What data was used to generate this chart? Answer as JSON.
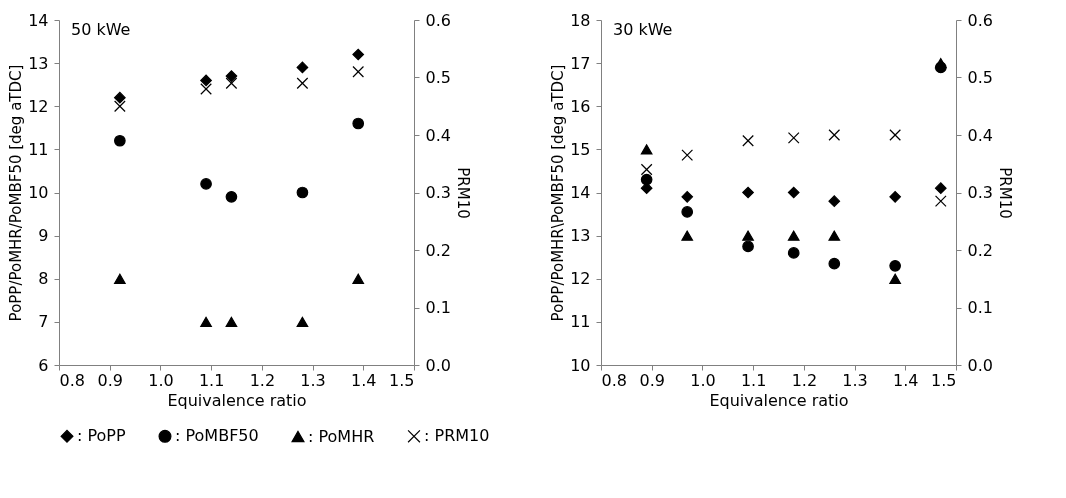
{
  "chart_data": [
    {
      "type": "scatter",
      "annotations": [
        "50 kWe"
      ],
      "xlabel": "Equivalence ratio",
      "ylabel": "PoPP/PoMHR/PoMBF50 [deg aTDC]",
      "y2label": "PRM10",
      "x": [
        0.92,
        1.09,
        1.14,
        1.28,
        1.39
      ],
      "xlim": [
        0.8,
        1.5
      ],
      "xticks": [
        0.8,
        0.9,
        {
          "value": 1.0,
          "label": "1.0"
        },
        1.1,
        1.2,
        1.3,
        1.4,
        1.5
      ],
      "ylim": [
        6,
        14
      ],
      "yticks": [
        6,
        7,
        8,
        9,
        10,
        11,
        12,
        13,
        14
      ],
      "y2lim": [
        0,
        0.6
      ],
      "y2ticks": [
        {
          "value": 0,
          "label": "0.0"
        },
        0.1,
        0.2,
        0.3,
        0.4,
        0.5,
        0.6
      ],
      "grid": false,
      "legend": "bottom",
      "series": [
        {
          "name": ": PoPP",
          "color": "#000000",
          "marker": "diamond",
          "values": [
            12.2,
            12.6,
            12.7,
            12.9,
            13.2
          ]
        },
        {
          "name": ": PoMBF50",
          "color": "#000000",
          "marker": "circle",
          "values": [
            11.2,
            10.2,
            9.9,
            10.0,
            11.6
          ]
        },
        {
          "name": ": PoMHR",
          "color": "#000000",
          "marker": "triangle",
          "values": [
            8,
            7,
            7,
            7,
            8
          ]
        },
        {
          "name": ": PRM10",
          "color": "#000000",
          "marker": "cross",
          "axis": "y2",
          "values": [
            0.45,
            0.48,
            0.49,
            0.49,
            0.51
          ]
        }
      ]
    },
    {
      "type": "scatter",
      "annotations": [
        "30 kWe"
      ],
      "xlabel": "Equivalence ratio",
      "ylabel": "PoPP/PoMHR\\PoMBF50 [deg aTDC]",
      "y2label": "PRM10",
      "x": [
        0.89,
        0.97,
        1.09,
        1.18,
        1.26,
        1.38,
        1.47
      ],
      "xlim": [
        0.8,
        1.5
      ],
      "xticks": [
        0.8,
        0.9,
        {
          "value": 1.0,
          "label": "1.0"
        },
        1.1,
        1.2,
        1.3,
        1.4,
        1.5
      ],
      "ylim": [
        10,
        18
      ],
      "yticks": [
        10,
        11,
        12,
        13,
        14,
        15,
        16,
        17,
        18
      ],
      "y2lim": [
        0,
        0.6
      ],
      "y2ticks": [
        {
          "value": 0,
          "label": "0.0"
        },
        0.1,
        0.2,
        0.3,
        0.4,
        0.5,
        0.6
      ],
      "grid": false,
      "series": [
        {
          "color": "#000000",
          "marker": "diamond",
          "values": [
            14.1,
            13.9,
            14.0,
            14.0,
            13.8,
            13.9,
            14.1
          ]
        },
        {
          "color": "#000000",
          "marker": "circle",
          "values": [
            14.3,
            13.55,
            12.75,
            12.6,
            12.35,
            12.3,
            16.9
          ]
        },
        {
          "color": "#000000",
          "marker": "triangle",
          "values": [
            15,
            13,
            13,
            13,
            13,
            12,
            17
          ]
        },
        {
          "color": "#000000",
          "marker": "cross",
          "axis": "y2",
          "values": [
            0.34,
            0.365,
            0.39,
            0.395,
            0.4,
            0.4,
            0.285
          ]
        }
      ]
    }
  ]
}
